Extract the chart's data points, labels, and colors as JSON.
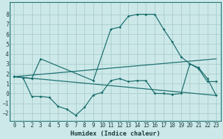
{
  "xlabel": "Humidex (Indice chaleur)",
  "bg_color": "#cce8e8",
  "grid_color": "#aacccc",
  "line_color": "#1a6e6e",
  "xlim": [
    -0.5,
    23.5
  ],
  "ylim": [
    -2.8,
    9.2
  ],
  "xticks": [
    0,
    1,
    2,
    3,
    4,
    5,
    6,
    7,
    8,
    9,
    10,
    11,
    12,
    13,
    14,
    15,
    16,
    17,
    18,
    19,
    20,
    21,
    22,
    23
  ],
  "yticks": [
    -2,
    -1,
    0,
    1,
    2,
    3,
    4,
    5,
    6,
    7,
    8
  ],
  "line1_x": [
    0,
    1,
    2,
    3,
    9,
    11,
    12,
    13,
    14,
    15,
    16,
    17,
    18,
    19,
    20,
    21,
    22,
    23
  ],
  "line1_y": [
    1.7,
    1.6,
    1.5,
    3.5,
    1.3,
    6.5,
    6.7,
    7.8,
    8.0,
    8.0,
    8.0,
    6.5,
    5.2,
    3.7,
    3.0,
    2.5,
    1.2,
    1.2
  ],
  "line2_x": [
    0,
    1,
    2,
    3,
    4,
    5,
    6,
    7,
    8,
    9,
    10,
    11,
    12,
    13,
    14,
    15,
    16,
    17,
    18,
    19,
    20,
    21,
    22,
    23
  ],
  "line2_y": [
    1.7,
    1.6,
    -0.3,
    -0.3,
    -0.4,
    -1.3,
    -1.6,
    -2.2,
    -1.4,
    -0.15,
    0.1,
    1.3,
    1.5,
    1.2,
    1.3,
    1.3,
    0.0,
    0.0,
    -0.1,
    0.0,
    3.0,
    2.6,
    1.5,
    -0.2
  ],
  "line3_x": [
    0,
    23
  ],
  "line3_y": [
    1.7,
    3.5
  ],
  "line4_x": [
    0,
    23
  ],
  "line4_y": [
    1.7,
    -0.2
  ]
}
